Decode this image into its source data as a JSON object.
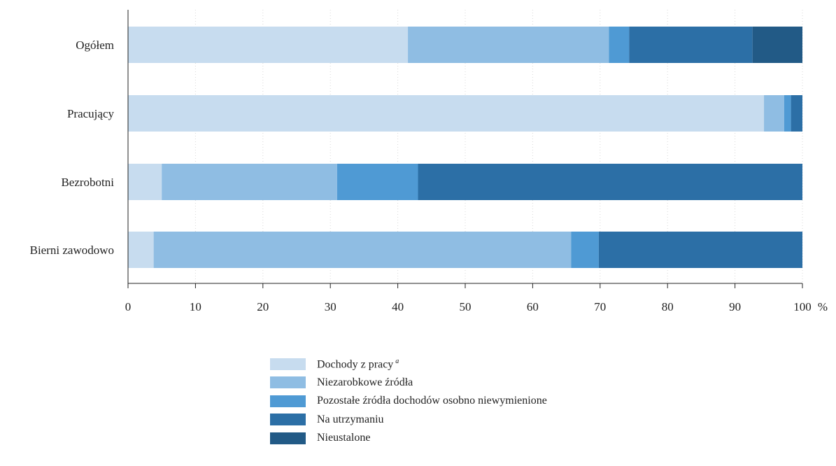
{
  "chart_data": {
    "type": "bar",
    "orientation": "horizontal",
    "stacked": true,
    "categories": [
      "Ogółem",
      "Pracujący",
      "Bezrobotni",
      "Bierni zawodowo"
    ],
    "series": [
      {
        "name": "Dochody z pracy",
        "superscript": "a",
        "color": "#c7dcef",
        "values": [
          41.5,
          94.3,
          5.0,
          3.8
        ]
      },
      {
        "name": "Niezarobkowe źródła",
        "color": "#8fbde3",
        "values": [
          29.8,
          3.0,
          26.0,
          61.9
        ]
      },
      {
        "name": "Pozostałe źródła dochodów osobno niewymienione",
        "color": "#4f9ad4",
        "values": [
          3.0,
          1.0,
          12.0,
          4.1
        ]
      },
      {
        "name": "Na utrzymaniu",
        "color": "#2c6fa6",
        "values": [
          18.3,
          1.7,
          57.0,
          30.2
        ]
      },
      {
        "name": "Nieustalone",
        "color": "#225a86",
        "values": [
          7.4,
          0.0,
          0.0,
          0.0
        ]
      }
    ],
    "x_ticks": [
      "0",
      "10",
      "20",
      "30",
      "40",
      "50",
      "60",
      "70",
      "80",
      "90",
      "100"
    ],
    "x_unit": "%",
    "xlim": [
      0,
      100
    ],
    "grid": "vertical dotted"
  }
}
